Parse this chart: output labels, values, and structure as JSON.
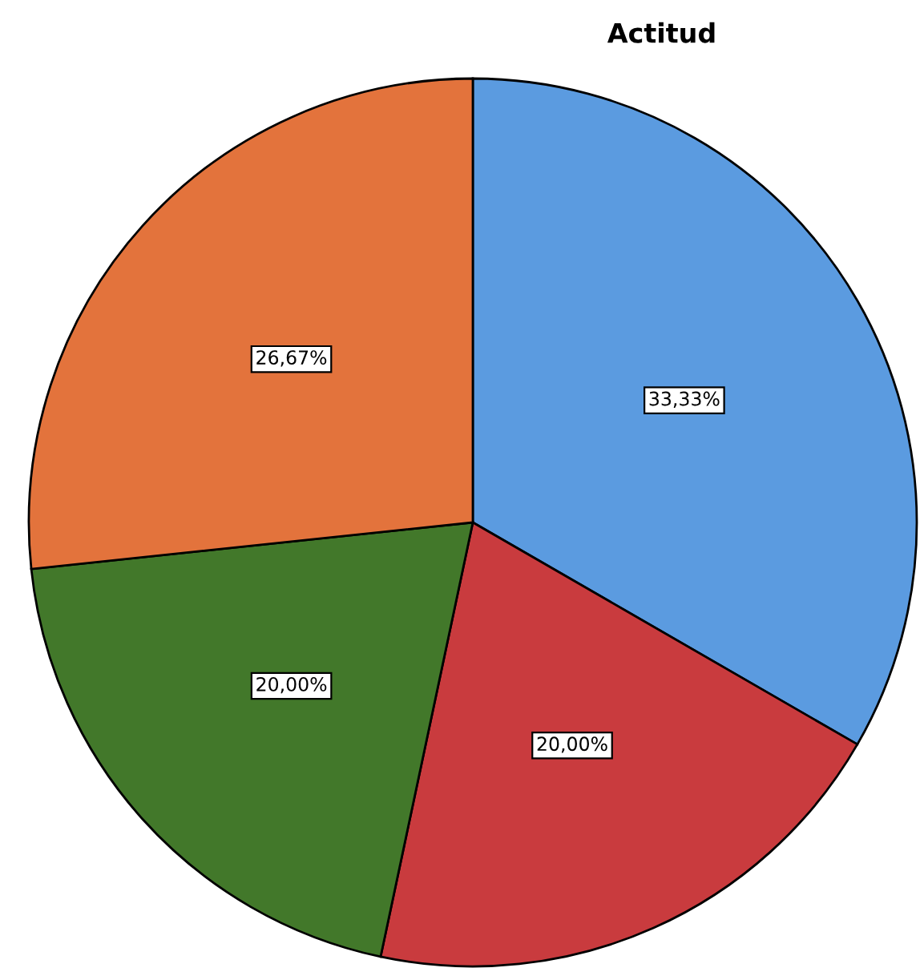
{
  "chart_data": {
    "type": "pie",
    "title": "Actitud",
    "categories": [
      null,
      null,
      null,
      null
    ],
    "values": [
      33.33,
      20.0,
      20.0,
      26.67
    ],
    "colors": [
      "#5b9be0",
      "#c93b3e",
      "#42782a",
      "#e3733c"
    ],
    "value_labels": [
      "33,33%",
      "20,00%",
      "20,00%",
      "26,67%"
    ],
    "legend": false
  }
}
